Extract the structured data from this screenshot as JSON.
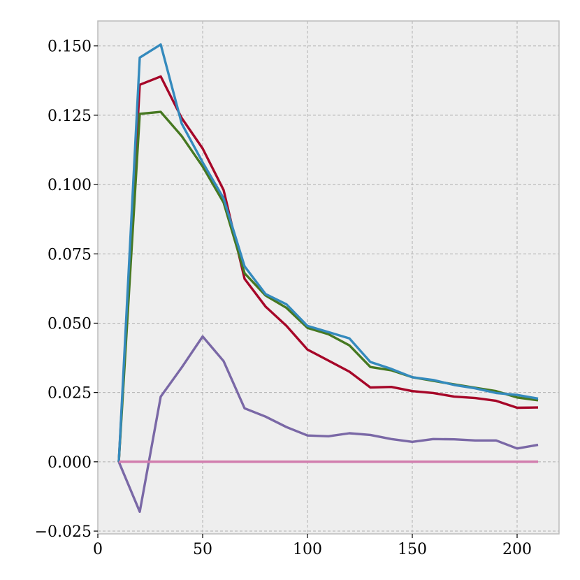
{
  "chart_data": {
    "type": "line",
    "title": "",
    "xlabel": "",
    "ylabel": "",
    "xlim": [
      0,
      220
    ],
    "ylim": [
      -0.026,
      0.159
    ],
    "grid": true,
    "x_ticks": [
      0,
      50,
      100,
      150,
      200
    ],
    "x_tick_labels": [
      "0",
      "50",
      "100",
      "150",
      "200"
    ],
    "y_ticks": [
      -0.025,
      0.0,
      0.025,
      0.05,
      0.075,
      0.1,
      0.125,
      0.15
    ],
    "y_tick_labels": [
      "−0.025",
      "0.000",
      "0.025",
      "0.050",
      "0.075",
      "0.100",
      "0.125",
      "0.150"
    ],
    "x": [
      10,
      20,
      30,
      40,
      50,
      60,
      70,
      80,
      90,
      100,
      110,
      120,
      130,
      140,
      150,
      160,
      170,
      180,
      190,
      200,
      210
    ],
    "series": [
      {
        "color": "#A60628",
        "values": [
          0.0,
          0.136,
          0.139,
          0.124,
          0.113,
          0.098,
          0.066,
          0.056,
          0.049,
          0.0405,
          0.0365,
          0.0325,
          0.0268,
          0.027,
          0.0255,
          0.0248,
          0.0235,
          0.023,
          0.022,
          0.0195,
          0.0196
        ]
      },
      {
        "color": "#467821",
        "values": [
          0.0,
          0.1255,
          0.1262,
          0.1175,
          0.1065,
          0.0935,
          0.068,
          0.06,
          0.0555,
          0.0483,
          0.046,
          0.042,
          0.0342,
          0.033,
          0.0305,
          0.0292,
          0.0279,
          0.0267,
          0.0255,
          0.0232,
          0.0222
        ]
      },
      {
        "color": "#348ABD",
        "values": [
          0.0,
          0.1458,
          0.1505,
          0.122,
          0.108,
          0.095,
          0.0705,
          0.0605,
          0.0568,
          0.049,
          0.0468,
          0.0445,
          0.036,
          0.0335,
          0.0305,
          0.0295,
          0.0277,
          0.0265,
          0.0248,
          0.0241,
          0.0228
        ]
      },
      {
        "color": "#7A68A6",
        "values": [
          0.0,
          -0.018,
          0.0235,
          0.034,
          0.0452,
          0.0363,
          0.0193,
          0.0163,
          0.0125,
          0.0095,
          0.0092,
          0.0103,
          0.0097,
          0.0082,
          0.0072,
          0.0082,
          0.0081,
          0.0077,
          0.0077,
          0.0048,
          0.0061
        ]
      },
      {
        "color": "#CF4457",
        "values": [
          0.0,
          0.0,
          0.0,
          0.0,
          0.0,
          0.0,
          0.0,
          0.0,
          0.0,
          0.0,
          0.0,
          0.0,
          0.0,
          0.0,
          0.0,
          0.0,
          0.0,
          0.0,
          0.0,
          0.0,
          0.0
        ]
      },
      {
        "color": "#D17DAE",
        "values": [
          0.0,
          0.0,
          0.0,
          0.0,
          0.0,
          0.0,
          0.0,
          0.0,
          0.0,
          0.0,
          0.0,
          0.0,
          0.0,
          0.0,
          0.0,
          0.0,
          0.0,
          0.0,
          0.0,
          0.0,
          0.0
        ]
      }
    ],
    "colors": {
      "plot_background": "#EEEEEE",
      "frame": "#BCBCBC",
      "grid": "#B0B0B0"
    }
  }
}
